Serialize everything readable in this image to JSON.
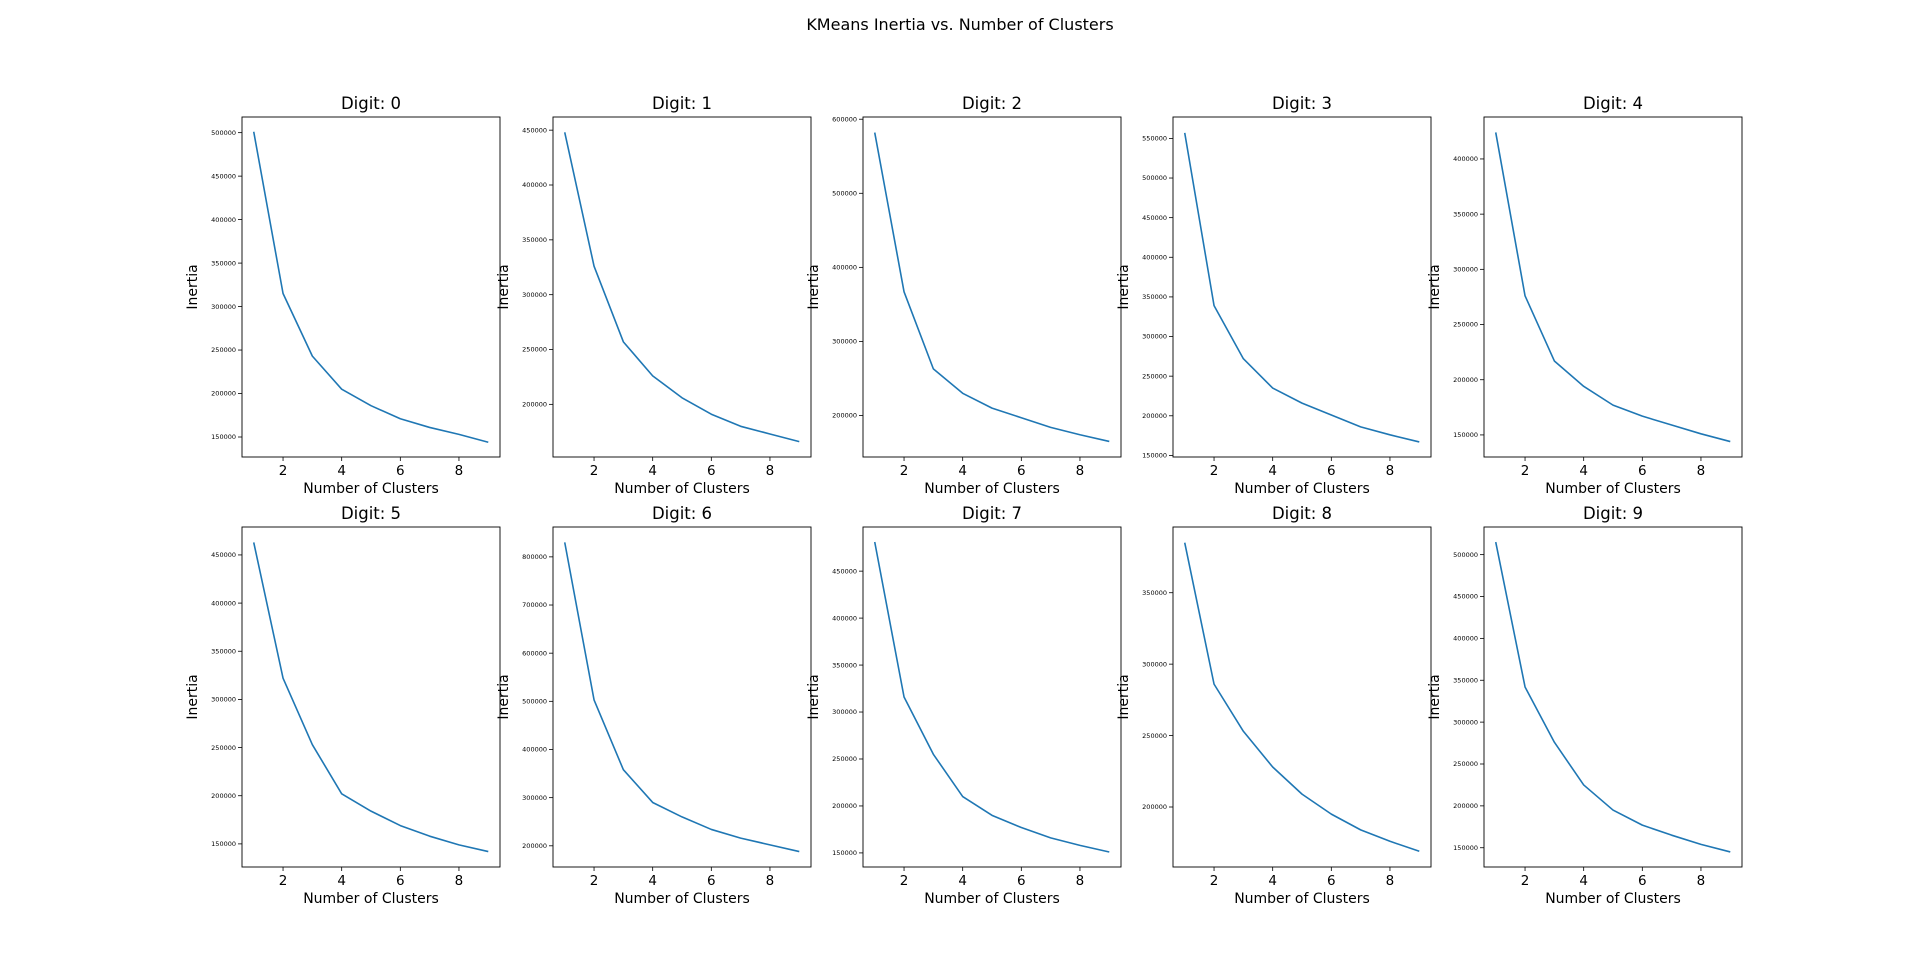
{
  "suptitle": "KMeans Inertia vs. Number of Clusters",
  "colors": {
    "line": "#1f77b4",
    "axes": "#000000",
    "background": "#ffffff"
  },
  "chart_data": [
    {
      "type": "line",
      "title": "Digit: 0",
      "xlabel": "Number of Clusters",
      "ylabel": "Inertia",
      "x": [
        1,
        2,
        3,
        4,
        5,
        6,
        7,
        8,
        9
      ],
      "values": [
        501000,
        315000,
        243000,
        205000,
        186000,
        171000,
        161000,
        153000,
        144000
      ],
      "xlim": [
        0.6,
        9.4
      ],
      "ylim": [
        127000,
        518000
      ],
      "xticks": [
        2,
        4,
        6,
        8
      ],
      "yticks": [
        150000,
        200000,
        250000,
        300000,
        350000,
        400000,
        450000,
        500000
      ]
    },
    {
      "type": "line",
      "title": "Digit: 1",
      "xlabel": "Number of Clusters",
      "ylabel": "Inertia",
      "x": [
        1,
        2,
        3,
        4,
        5,
        6,
        7,
        8,
        9
      ],
      "values": [
        448000,
        326000,
        257000,
        226000,
        206000,
        191000,
        180000,
        173000,
        166000
      ],
      "xlim": [
        0.6,
        9.4
      ],
      "ylim": [
        152000,
        462000
      ],
      "xticks": [
        2,
        4,
        6,
        8
      ],
      "yticks": [
        200000,
        250000,
        300000,
        350000,
        400000,
        450000
      ]
    },
    {
      "type": "line",
      "title": "Digit: 2",
      "xlabel": "Number of Clusters",
      "ylabel": "Inertia",
      "x": [
        1,
        2,
        3,
        4,
        5,
        6,
        7,
        8,
        9
      ],
      "values": [
        582000,
        367000,
        263000,
        230000,
        210000,
        197000,
        184000,
        174000,
        165000
      ],
      "xlim": [
        0.6,
        9.4
      ],
      "ylim": [
        144000,
        603000
      ],
      "xticks": [
        2,
        4,
        6,
        8
      ],
      "yticks": [
        200000,
        300000,
        400000,
        500000,
        600000
      ]
    },
    {
      "type": "line",
      "title": "Digit: 3",
      "xlabel": "Number of Clusters",
      "ylabel": "Inertia",
      "x": [
        1,
        2,
        3,
        4,
        5,
        6,
        7,
        8,
        9
      ],
      "values": [
        557000,
        339000,
        272000,
        235000,
        216000,
        201000,
        186000,
        176000,
        167000
      ],
      "xlim": [
        0.6,
        9.4
      ],
      "ylim": [
        148000,
        577000
      ],
      "xticks": [
        2,
        4,
        6,
        8
      ],
      "yticks": [
        150000,
        200000,
        250000,
        300000,
        350000,
        400000,
        450000,
        500000,
        550000
      ]
    },
    {
      "type": "line",
      "title": "Digit: 4",
      "xlabel": "Number of Clusters",
      "ylabel": "Inertia",
      "x": [
        1,
        2,
        3,
        4,
        5,
        6,
        7,
        8,
        9
      ],
      "values": [
        424000,
        276000,
        217000,
        194000,
        177000,
        167000,
        159000,
        151000,
        144000
      ],
      "xlim": [
        0.6,
        9.4
      ],
      "ylim": [
        130000,
        438000
      ],
      "xticks": [
        2,
        4,
        6,
        8
      ],
      "yticks": [
        150000,
        200000,
        250000,
        300000,
        350000,
        400000
      ]
    },
    {
      "type": "line",
      "title": "Digit: 5",
      "xlabel": "Number of Clusters",
      "ylabel": "Inertia",
      "x": [
        1,
        2,
        3,
        4,
        5,
        6,
        7,
        8,
        9
      ],
      "values": [
        463000,
        322000,
        253000,
        202000,
        184000,
        169000,
        158000,
        149000,
        142000
      ],
      "xlim": [
        0.6,
        9.4
      ],
      "ylim": [
        126000,
        479000
      ],
      "xticks": [
        2,
        4,
        6,
        8
      ],
      "yticks": [
        150000,
        200000,
        250000,
        300000,
        350000,
        400000,
        450000
      ]
    },
    {
      "type": "line",
      "title": "Digit: 6",
      "xlabel": "Number of Clusters",
      "ylabel": "Inertia",
      "x": [
        1,
        2,
        3,
        4,
        5,
        6,
        7,
        8,
        9
      ],
      "values": [
        830000,
        503000,
        358000,
        290000,
        260000,
        234000,
        216000,
        202000,
        188000
      ],
      "xlim": [
        0.6,
        9.4
      ],
      "ylim": [
        156000,
        862000
      ],
      "xticks": [
        2,
        4,
        6,
        8
      ],
      "yticks": [
        200000,
        300000,
        400000,
        500000,
        600000,
        700000,
        800000
      ]
    },
    {
      "type": "line",
      "title": "Digit: 7",
      "xlabel": "Number of Clusters",
      "ylabel": "Inertia",
      "x": [
        1,
        2,
        3,
        4,
        5,
        6,
        7,
        8,
        9
      ],
      "values": [
        481000,
        316000,
        255000,
        210000,
        190000,
        177000,
        166000,
        158000,
        151000
      ],
      "xlim": [
        0.6,
        9.4
      ],
      "ylim": [
        135000,
        497000
      ],
      "xticks": [
        2,
        4,
        6,
        8
      ],
      "yticks": [
        150000,
        200000,
        250000,
        300000,
        350000,
        400000,
        450000
      ]
    },
    {
      "type": "line",
      "title": "Digit: 8",
      "xlabel": "Number of Clusters",
      "ylabel": "Inertia",
      "x": [
        1,
        2,
        3,
        4,
        5,
        6,
        7,
        8,
        9
      ],
      "values": [
        385000,
        286000,
        253000,
        228000,
        209000,
        195000,
        184000,
        176000,
        169000
      ],
      "xlim": [
        0.6,
        9.4
      ],
      "ylim": [
        158000,
        396000
      ],
      "xticks": [
        2,
        4,
        6,
        8
      ],
      "yticks": [
        200000,
        250000,
        300000,
        350000
      ]
    },
    {
      "type": "line",
      "title": "Digit: 9",
      "xlabel": "Number of Clusters",
      "ylabel": "Inertia",
      "x": [
        1,
        2,
        3,
        4,
        5,
        6,
        7,
        8,
        9
      ],
      "values": [
        515000,
        342000,
        276000,
        225000,
        195000,
        177000,
        165000,
        154000,
        145000
      ],
      "xlim": [
        0.6,
        9.4
      ],
      "ylim": [
        127000,
        533000
      ],
      "xticks": [
        2,
        4,
        6,
        8
      ],
      "yticks": [
        150000,
        200000,
        250000,
        300000,
        350000,
        400000,
        450000,
        500000
      ]
    }
  ]
}
